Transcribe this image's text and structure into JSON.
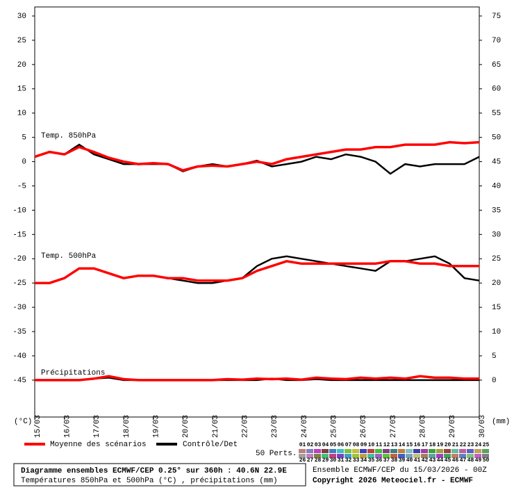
{
  "chart_data": {
    "type": "line",
    "annotations": [
      "Temp. 850hPa",
      "Temp. 500hPa",
      "Précipitations"
    ],
    "y_unit": "(°C)",
    "y2_unit": "(mm)",
    "x": [
      0,
      12,
      24,
      36,
      48,
      60,
      72,
      84,
      96,
      108,
      120,
      132,
      144,
      156,
      168,
      180,
      192,
      204,
      216,
      228,
      240,
      252,
      264,
      276,
      288,
      300,
      312,
      324,
      336,
      348,
      360
    ],
    "xlim": [
      0,
      360
    ],
    "xticks": [
      {
        "value": 0,
        "label": "15/03"
      },
      {
        "value": 24,
        "label": "16/03"
      },
      {
        "value": 48,
        "label": "17/03"
      },
      {
        "value": 72,
        "label": "18/03"
      },
      {
        "value": 96,
        "label": "19/03"
      },
      {
        "value": 120,
        "label": "20/03"
      },
      {
        "value": 144,
        "label": "21/03"
      },
      {
        "value": 168,
        "label": "22/03"
      },
      {
        "value": 192,
        "label": "23/03"
      },
      {
        "value": 216,
        "label": "24/03"
      },
      {
        "value": 240,
        "label": "25/03"
      },
      {
        "value": 264,
        "label": "26/03"
      },
      {
        "value": 288,
        "label": "27/03"
      },
      {
        "value": 312,
        "label": "28/03"
      },
      {
        "value": 336,
        "label": "29/03"
      },
      {
        "value": 360,
        "label": "30/03"
      }
    ],
    "ylim": [
      -52.6,
      30
    ],
    "yticks": [
      30,
      25,
      20,
      15,
      10,
      5,
      0,
      -5,
      -10,
      -15,
      -20,
      -25,
      -30,
      -35,
      -40,
      -45
    ],
    "y2lim": [
      -7.6,
      75
    ],
    "y2ticks": [
      75,
      70,
      65,
      60,
      55,
      50,
      45,
      40,
      35,
      30,
      25,
      20,
      15,
      10,
      5,
      0
    ],
    "series": [
      {
        "name": "Moyenne des scénarios",
        "color": "#ff0000",
        "values": [
          1,
          2,
          1.5,
          3,
          2,
          0.8,
          0,
          -0.5,
          -0.3,
          -0.5,
          -1.8,
          -1,
          -0.8,
          -1,
          -0.5,
          0,
          -0.5,
          0.5,
          1,
          1.5,
          2,
          2.5,
          2.5,
          3,
          3,
          3.5,
          3.5,
          3.5,
          4,
          3.8,
          4
        ]
      },
      {
        "name": "Contrôle/Det",
        "color": "#000000",
        "values": [
          1,
          2,
          1.5,
          3.5,
          1.5,
          0.5,
          -0.5,
          -0.5,
          -0.5,
          -0.5,
          -2,
          -1,
          -0.5,
          -1,
          -0.5,
          0.2,
          -1,
          -0.5,
          0,
          1,
          0.5,
          1.5,
          1,
          0,
          -2.5,
          -0.5,
          -1,
          -0.5,
          -0.5,
          -0.5,
          1
        ]
      },
      {
        "name": "Moyenne des scénarios",
        "color": "#ff0000",
        "values": [
          -25,
          -25,
          -24,
          -22,
          -22,
          -23,
          -24,
          -23.5,
          -23.5,
          -24,
          -24,
          -24.5,
          -24.5,
          -24.5,
          -24,
          -22.5,
          -21.5,
          -20.5,
          -21,
          -21,
          -21,
          -21,
          -21,
          -21,
          -20.5,
          -20.5,
          -21,
          -21,
          -21.5,
          -21.5,
          -21.5
        ]
      },
      {
        "name": "Contrôle/Det",
        "color": "#000000",
        "values": [
          -25,
          -25,
          -24,
          -22,
          -22,
          -23,
          -24,
          -23.5,
          -23.5,
          -24,
          -24.5,
          -25,
          -25,
          -24.5,
          -24,
          -21.5,
          -20,
          -19.5,
          -20,
          -20.5,
          -21,
          -21.5,
          -22,
          -22.5,
          -20.5,
          -20.5,
          -20,
          -19.5,
          -21,
          -24,
          -24.5
        ]
      },
      {
        "name": "Moyenne des scénarios",
        "color": "#ff0000",
        "axis": "y2",
        "values": [
          0,
          0,
          0,
          0,
          0.3,
          0.8,
          0.2,
          0,
          0,
          0,
          0,
          0,
          0,
          0.2,
          0.1,
          0.3,
          0.2,
          0.3,
          0.1,
          0.5,
          0.3,
          0.2,
          0.5,
          0.3,
          0.5,
          0.3,
          0.8,
          0.5,
          0.5,
          0.3,
          0.3
        ]
      },
      {
        "name": "Contrôle/Det",
        "color": "#000000",
        "axis": "y2",
        "values": [
          0,
          0,
          0,
          0,
          0.3,
          0.5,
          0,
          0,
          0,
          0,
          0,
          0,
          0,
          0,
          0,
          0,
          0.3,
          0,
          0,
          0.2,
          0,
          0,
          0,
          0,
          0,
          0,
          0,
          0,
          0,
          0,
          0
        ]
      }
    ],
    "perts": {
      "label": "50 Perts.",
      "members": [
        "01",
        "02",
        "03",
        "04",
        "05",
        "06",
        "07",
        "08",
        "09",
        "10",
        "11",
        "12",
        "13",
        "14",
        "15",
        "16",
        "17",
        "18",
        "19",
        "20",
        "21",
        "22",
        "23",
        "24",
        "25",
        "26",
        "27",
        "28",
        "29",
        "30",
        "31",
        "32",
        "33",
        "34",
        "35",
        "36",
        "37",
        "38",
        "39",
        "40",
        "41",
        "42",
        "43",
        "44",
        "45",
        "46",
        "47",
        "48",
        "49",
        "50"
      ],
      "colors": [
        "#c08080",
        "#8080c0",
        "#c040c0",
        "#804040",
        "#4080c0",
        "#40c0c0",
        "#80c040",
        "#c0c040",
        "#4040c0",
        "#c04040",
        "#40c040",
        "#804080",
        "#408080",
        "#c08040",
        "#80c0c0",
        "#4040a0",
        "#a040a0",
        "#40a040",
        "#a0a040",
        "#a04040",
        "#60c0a0",
        "#c060a0",
        "#6060c0",
        "#c0a060",
        "#60a060",
        "#a0a0a0",
        "#c080c0",
        "#808040",
        "#40c080",
        "#c04080",
        "#8040c0",
        "#40a0c0",
        "#a0c040",
        "#c0a040",
        "#40c0a0",
        "#a060c0",
        "#60c040",
        "#c06040",
        "#4060c0",
        "#80a0c0",
        "#c0c080",
        "#a08060",
        "#60a0a0",
        "#a040c0",
        "#40a060",
        "#c08060",
        "#6080c0",
        "#80c080",
        "#c060c0",
        "#808080"
      ]
    },
    "footer": {
      "title": "Diagramme ensembles ECMWF/CEP 0.25° sur 360h : 40.6N 22.9E",
      "subtitle": "Températures 850hPa et 500hPa (°C) , précipitations (mm)",
      "run": "Ensemble ECMWF/CEP du 15/03/2026 - 00Z",
      "copyright": "Copyright 2026 Meteociel.fr - ECMWF"
    }
  }
}
